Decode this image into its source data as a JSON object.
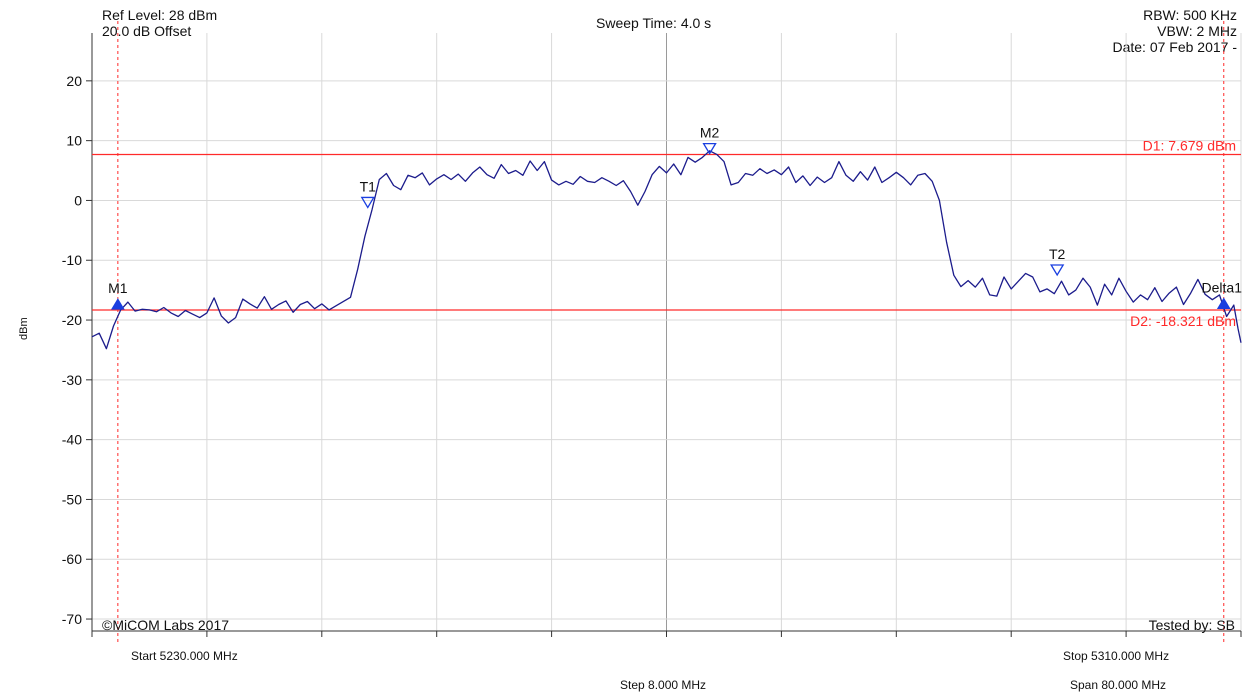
{
  "header": {
    "ref_level": "Ref Level: 28 dBm",
    "offset": "20.0 dB Offset",
    "sweep_time": "Sweep Time: 4.0 s",
    "rbw": "RBW: 500 KHz",
    "vbw": "VBW: 2 MHz",
    "date": "Date: 07 Feb 2017 -"
  },
  "footer": {
    "copyright": "©MiCOM Labs 2017",
    "tested_by": "Tested by: SB",
    "start": "Start 5230.000 MHz",
    "step": "Step 8.000 MHz",
    "stop": "Stop 5310.000 MHz",
    "span": "Span 80.000 MHz"
  },
  "chart_data": {
    "type": "line",
    "ylabel": "dBm",
    "xlabel": "",
    "xlim": [
      5230,
      5310
    ],
    "ylim": [
      -72,
      28
    ],
    "grid": true,
    "yticks": [
      20,
      10,
      0,
      -10,
      -20,
      -30,
      -40,
      -50,
      -60,
      -70
    ],
    "xticks_count": 10,
    "colors": {
      "trace": "#1c1c8c",
      "display_line": "#ff2a2a",
      "marker": "#1a3fe0",
      "grid": "#d9d9d9",
      "center": "#9a9a9a"
    },
    "series": [
      {
        "values": [
          [
            5230.0,
            -22.8
          ],
          [
            5230.5,
            -22.2
          ],
          [
            5231.0,
            -24.8
          ],
          [
            5231.5,
            -21.0
          ],
          [
            5232.0,
            -18.3
          ],
          [
            5232.5,
            -17.0
          ],
          [
            5233.0,
            -18.5
          ],
          [
            5233.5,
            -18.2
          ],
          [
            5234.0,
            -18.3
          ],
          [
            5234.5,
            -18.6
          ],
          [
            5235.0,
            -17.9
          ],
          [
            5235.5,
            -18.8
          ],
          [
            5236.0,
            -19.4
          ],
          [
            5236.5,
            -18.4
          ],
          [
            5237.0,
            -19.0
          ],
          [
            5237.5,
            -19.6
          ],
          [
            5238.0,
            -18.8
          ],
          [
            5238.5,
            -16.3
          ],
          [
            5239.0,
            -19.3
          ],
          [
            5239.5,
            -20.5
          ],
          [
            5240.0,
            -19.6
          ],
          [
            5240.5,
            -16.5
          ],
          [
            5241.0,
            -17.3
          ],
          [
            5241.5,
            -18.0
          ],
          [
            5242.0,
            -16.1
          ],
          [
            5242.5,
            -18.2
          ],
          [
            5243.0,
            -17.4
          ],
          [
            5243.5,
            -16.8
          ],
          [
            5244.0,
            -18.7
          ],
          [
            5244.5,
            -17.4
          ],
          [
            5245.0,
            -16.9
          ],
          [
            5245.5,
            -18.1
          ],
          [
            5246.0,
            -17.3
          ],
          [
            5246.5,
            -18.3
          ],
          [
            5247.0,
            -17.6
          ],
          [
            5248.0,
            -16.2
          ],
          [
            5248.5,
            -11.5
          ],
          [
            5249.0,
            -6.0
          ],
          [
            5249.5,
            -1.5
          ],
          [
            5250.0,
            3.5
          ],
          [
            5250.5,
            4.5
          ],
          [
            5251.0,
            2.5
          ],
          [
            5251.5,
            1.8
          ],
          [
            5252.0,
            4.2
          ],
          [
            5252.5,
            3.8
          ],
          [
            5253.0,
            4.6
          ],
          [
            5253.5,
            2.6
          ],
          [
            5254.0,
            3.6
          ],
          [
            5254.5,
            4.3
          ],
          [
            5255.0,
            3.5
          ],
          [
            5255.5,
            4.4
          ],
          [
            5256.0,
            3.2
          ],
          [
            5256.5,
            4.6
          ],
          [
            5257.0,
            5.6
          ],
          [
            5257.5,
            4.3
          ],
          [
            5258.0,
            3.7
          ],
          [
            5258.5,
            6.0
          ],
          [
            5259.0,
            4.5
          ],
          [
            5259.5,
            5.0
          ],
          [
            5260.0,
            4.2
          ],
          [
            5260.5,
            6.6
          ],
          [
            5261.0,
            5.0
          ],
          [
            5261.5,
            6.5
          ],
          [
            5262.0,
            3.4
          ],
          [
            5262.5,
            2.6
          ],
          [
            5263.0,
            3.2
          ],
          [
            5263.5,
            2.7
          ],
          [
            5264.0,
            4.0
          ],
          [
            5264.5,
            3.2
          ],
          [
            5265.0,
            3.0
          ],
          [
            5265.5,
            3.8
          ],
          [
            5266.0,
            3.2
          ],
          [
            5266.5,
            2.5
          ],
          [
            5267.0,
            3.3
          ],
          [
            5267.5,
            1.5
          ],
          [
            5268.0,
            -0.8
          ],
          [
            5268.5,
            1.5
          ],
          [
            5269.0,
            4.3
          ],
          [
            5269.5,
            5.7
          ],
          [
            5270.0,
            4.6
          ],
          [
            5270.5,
            6.1
          ],
          [
            5271.0,
            4.3
          ],
          [
            5271.5,
            7.2
          ],
          [
            5272.0,
            6.4
          ],
          [
            5272.5,
            7.2
          ],
          [
            5273.0,
            8.3
          ],
          [
            5273.5,
            7.7
          ],
          [
            5274.0,
            6.5
          ],
          [
            5274.5,
            2.6
          ],
          [
            5275.0,
            3.0
          ],
          [
            5275.5,
            4.5
          ],
          [
            5276.0,
            4.2
          ],
          [
            5276.5,
            5.3
          ],
          [
            5277.0,
            4.5
          ],
          [
            5277.5,
            5.1
          ],
          [
            5278.0,
            4.3
          ],
          [
            5278.5,
            5.6
          ],
          [
            5279.0,
            3.0
          ],
          [
            5279.5,
            4.1
          ],
          [
            5280.0,
            2.5
          ],
          [
            5280.5,
            3.9
          ],
          [
            5281.0,
            3.0
          ],
          [
            5281.5,
            3.8
          ],
          [
            5282.0,
            6.5
          ],
          [
            5282.5,
            4.2
          ],
          [
            5283.0,
            3.2
          ],
          [
            5283.5,
            4.8
          ],
          [
            5284.0,
            3.4
          ],
          [
            5284.5,
            5.6
          ],
          [
            5285.0,
            3.0
          ],
          [
            5285.5,
            3.8
          ],
          [
            5286.0,
            4.7
          ],
          [
            5286.5,
            3.8
          ],
          [
            5287.0,
            2.6
          ],
          [
            5287.5,
            4.2
          ],
          [
            5288.0,
            4.5
          ],
          [
            5288.5,
            3.2
          ],
          [
            5289.0,
            0.0
          ],
          [
            5289.5,
            -7.0
          ],
          [
            5290.0,
            -12.5
          ],
          [
            5290.5,
            -14.4
          ],
          [
            5291.0,
            -13.4
          ],
          [
            5291.5,
            -14.5
          ],
          [
            5292.0,
            -13.0
          ],
          [
            5292.5,
            -15.8
          ],
          [
            5293.0,
            -16.0
          ],
          [
            5293.5,
            -12.8
          ],
          [
            5294.0,
            -14.8
          ],
          [
            5294.5,
            -13.5
          ],
          [
            5295.0,
            -12.2
          ],
          [
            5295.5,
            -12.8
          ],
          [
            5296.0,
            -15.3
          ],
          [
            5296.5,
            -14.8
          ],
          [
            5297.0,
            -15.6
          ],
          [
            5297.5,
            -13.5
          ],
          [
            5298.0,
            -15.8
          ],
          [
            5298.5,
            -15.0
          ],
          [
            5299.0,
            -13.0
          ],
          [
            5299.5,
            -14.5
          ],
          [
            5300.0,
            -17.5
          ],
          [
            5300.5,
            -14.0
          ],
          [
            5301.0,
            -15.8
          ],
          [
            5301.5,
            -13.0
          ],
          [
            5302.0,
            -15.2
          ],
          [
            5302.5,
            -17.0
          ],
          [
            5303.0,
            -15.8
          ],
          [
            5303.5,
            -16.6
          ],
          [
            5304.0,
            -14.6
          ],
          [
            5304.5,
            -16.9
          ],
          [
            5305.0,
            -15.5
          ],
          [
            5305.5,
            -14.5
          ],
          [
            5306.0,
            -17.4
          ],
          [
            5306.5,
            -15.5
          ],
          [
            5307.0,
            -13.2
          ],
          [
            5307.5,
            -15.7
          ],
          [
            5308.0,
            -16.6
          ],
          [
            5308.5,
            -15.8
          ],
          [
            5309.0,
            -19.4
          ],
          [
            5309.5,
            -17.5
          ],
          [
            5309.8,
            -21.5
          ],
          [
            5310.0,
            -23.8
          ]
        ]
      }
    ],
    "display_lines": [
      {
        "y": 7.679,
        "label": "D1: 7.679 dBm"
      },
      {
        "y": -18.321,
        "label": "D2: -18.321 dBm"
      }
    ],
    "vertical_lines": [
      5231.8,
      5308.8
    ],
    "markers": [
      {
        "name": "M1",
        "x": 5231.8,
        "y": -17.5,
        "type": "filled"
      },
      {
        "name": "T1",
        "x": 5249.2,
        "y": -0.5,
        "type": "hollow"
      },
      {
        "name": "M2",
        "x": 5273.0,
        "y": 8.5,
        "type": "hollow"
      },
      {
        "name": "T2",
        "x": 5297.2,
        "y": -11.8,
        "type": "hollow"
      },
      {
        "name": "Delta1",
        "x": 5308.8,
        "y": -17.4,
        "type": "filled"
      }
    ]
  }
}
